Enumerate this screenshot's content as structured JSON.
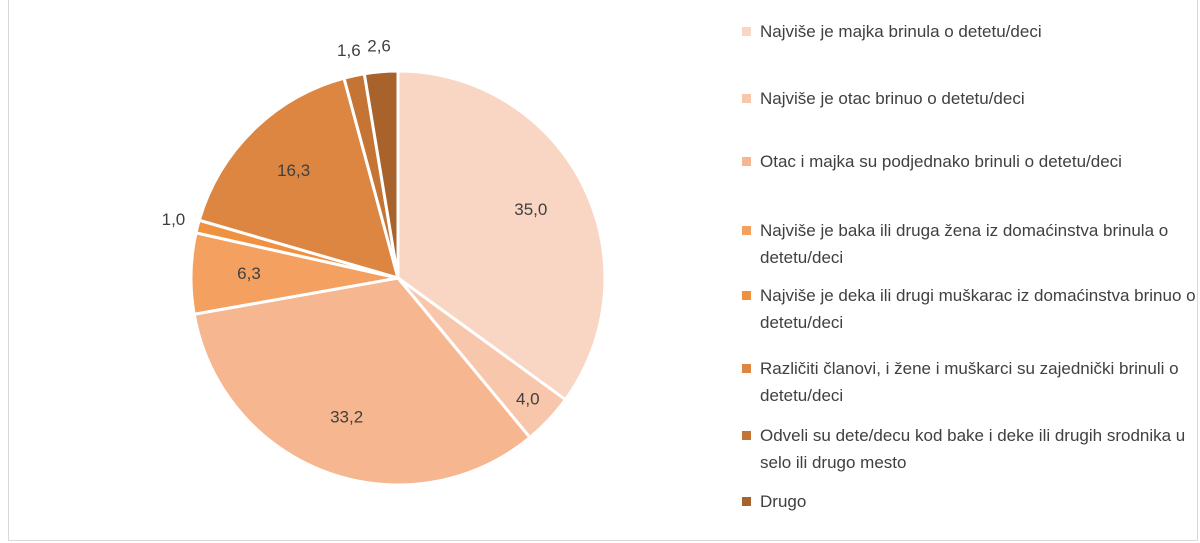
{
  "chart_data": {
    "type": "pie",
    "categories": [
      "Najviše je majka brinula o detetu/deci",
      "Najviše je otac brinuo o detetu/deci",
      "Otac i majka su podjednako brinuli o detetu/deci",
      "Najviše je baka ili druga žena iz domaćinstva brinula o detetu/deci",
      "Najviše je deka ili drugi muškarac iz domaćinstva brinuo o detetu/deci",
      "Različiti članovi, i žene i muškarci su zajednički brinuli o detetu/deci",
      "Odveli su dete/decu kod bake i deke ili drugih srodnika u selo ili drugo mesto",
      "Drugo"
    ],
    "values": [
      35.0,
      4.0,
      33.2,
      6.3,
      1.0,
      16.3,
      1.6,
      2.6
    ],
    "value_labels": [
      "35,0",
      "4,0",
      "33,2",
      "6,3",
      "1,0",
      "16,3",
      "1,6",
      "2,6"
    ],
    "colors": [
      "#f9d6c4",
      "#f8c6aa",
      "#f6b68f",
      "#f4a060",
      "#f0913f",
      "#dc8642",
      "#c47434",
      "#a8622c"
    ],
    "legend": "right"
  }
}
